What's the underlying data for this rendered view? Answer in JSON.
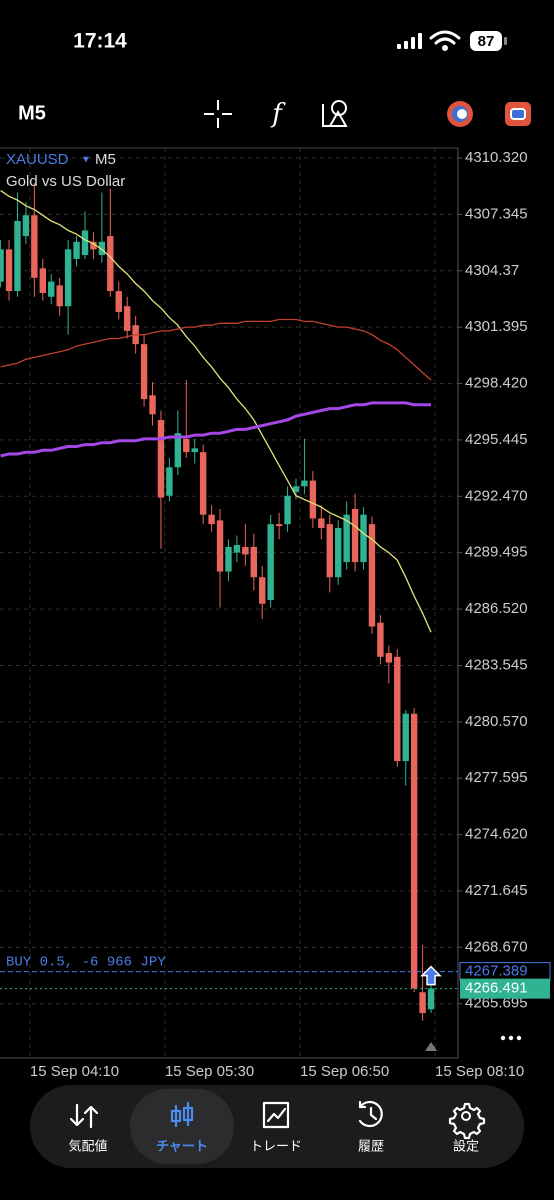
{
  "status_bar": {
    "time": "17:14",
    "battery": "87"
  },
  "toolbar": {
    "timeframe": "M5"
  },
  "chart_data": {
    "type": "candlestick",
    "symbol": "XAUUSD",
    "timeframe": "M5",
    "subtitle": "Gold vs US Dollar",
    "categories": [
      null,
      null,
      null,
      "15 Sep 04:10",
      null,
      null,
      null,
      null,
      null,
      null,
      null,
      null,
      null,
      null,
      null,
      null,
      null,
      null,
      null,
      "15 Sep 05:30",
      null,
      null,
      null,
      null,
      null,
      null,
      null,
      null,
      null,
      null,
      null,
      null,
      null,
      null,
      null,
      "15 Sep 06:50",
      null,
      null,
      null,
      null,
      null,
      null,
      null,
      null,
      null,
      null,
      null,
      null,
      null,
      null,
      null,
      "15 Sep 08:10"
    ],
    "open": [
      4303.8,
      4305.5,
      4303.3,
      4306.2,
      4307.3,
      4304.5,
      4303.0,
      4303.6,
      4302.5,
      4305.0,
      4305.2,
      4305.9,
      4305.2,
      4306.2,
      4303.3,
      4302.5,
      4301.5,
      4300.5,
      4297.8,
      4296.5,
      4292.5,
      4294.0,
      4295.5,
      4294.8,
      4294.8,
      4291.5,
      4291.2,
      4288.5,
      4289.5,
      4289.8,
      4289.8,
      4288.2,
      4287.0,
      4291.0,
      4291.0,
      4292.7,
      4293.0,
      4293.3,
      4291.3,
      4291.0,
      4288.2,
      4289.0,
      4291.8,
      4289.0,
      4291.0,
      4285.8,
      4284.2,
      4284.0,
      4278.5,
      4281.0,
      4266.3,
      4265.4
    ],
    "high": [
      4306.0,
      4306.0,
      4308.5,
      4308.0,
      4309.0,
      4305.0,
      4304.2,
      4304.0,
      4306.0,
      4306.2,
      4307.5,
      4306.4,
      4308.5,
      4308.7,
      4303.8,
      4303.0,
      4302.0,
      4301.0,
      4298.5,
      4297.0,
      4294.5,
      4297.0,
      4298.6,
      4295.5,
      4295.2,
      4292.0,
      4291.8,
      4290.2,
      4290.4,
      4291.0,
      4290.5,
      4288.8,
      4291.5,
      4291.6,
      4293.0,
      4293.4,
      4295.5,
      4293.8,
      4292.0,
      4291.5,
      4291.2,
      4292.2,
      4292.6,
      4291.9,
      4291.4,
      4286.2,
      4284.6,
      4284.4,
      4281.2,
      4281.3,
      4268.8,
      4267.0
    ],
    "low": [
      4303.5,
      4302.8,
      4303.0,
      4305.8,
      4303.0,
      4302.8,
      4302.6,
      4302.0,
      4301.0,
      4304.6,
      4305.0,
      4305.0,
      4304.8,
      4303.0,
      4301.8,
      4300.8,
      4300.0,
      4297.2,
      4296.2,
      4289.7,
      4292.2,
      4293.6,
      4294.5,
      4294.2,
      4291.0,
      4290.6,
      4286.6,
      4288.0,
      4289.0,
      4288.8,
      4287.5,
      4286.0,
      4286.6,
      4290.2,
      4290.6,
      4292.3,
      4292.6,
      4290.8,
      4290.2,
      4287.4,
      4287.8,
      4288.6,
      4288.5,
      4288.6,
      4285.2,
      4283.6,
      4282.6,
      4278.2,
      4277.2,
      4266.3,
      4264.8,
      4265.2
    ],
    "close": [
      4305.5,
      4303.3,
      4307.0,
      4307.3,
      4304.0,
      4303.2,
      4303.8,
      4302.5,
      4305.5,
      4305.9,
      4306.5,
      4305.5,
      4305.9,
      4303.3,
      4302.2,
      4301.2,
      4300.5,
      4297.6,
      4296.8,
      4292.4,
      4294.0,
      4295.8,
      4294.8,
      4295.0,
      4291.5,
      4291.0,
      4288.5,
      4289.8,
      4289.9,
      4289.4,
      4288.2,
      4286.8,
      4291.0,
      4290.9,
      4292.5,
      4293.0,
      4293.3,
      4291.3,
      4290.8,
      4288.2,
      4290.8,
      4291.5,
      4289.0,
      4291.5,
      4285.6,
      4284.0,
      4283.7,
      4278.5,
      4281.0,
      4266.5,
      4265.2,
      4266.5
    ],
    "up_color": "#2fb393",
    "down_color": "#e8665c",
    "series": [
      {
        "color": "#e6e07a",
        "values": [
          4308.6,
          4308.3,
          4308.1,
          4307.8,
          4307.6,
          4307.3,
          4307.0,
          4306.8,
          4306.5,
          4306.3,
          4306.0,
          4305.8,
          4305.5,
          4305.1,
          4304.6,
          4304.2,
          4303.7,
          4303.3,
          4302.8,
          4302.4,
          4301.9,
          4301.5,
          4300.9,
          4300.4,
          4299.8,
          4299.3,
          4298.7,
          4298.2,
          4297.6,
          4297.1,
          4296.5,
          4295.7,
          4294.9,
          4294.1,
          4293.3,
          4292.5,
          4292.3,
          4292.1,
          4291.9,
          4291.6,
          4291.4,
          4291.2,
          4290.9,
          4290.5,
          4290.2,
          4289.8,
          4289.5,
          4289.1,
          4288.2,
          4287.2,
          4286.3,
          4285.3
        ]
      },
      {
        "color": "#c2412f",
        "values": [
          4299.3,
          4299.4,
          4299.5,
          4299.7,
          4299.8,
          4299.9,
          4300.0,
          4300.1,
          4300.2,
          4300.4,
          4300.5,
          4300.6,
          4300.7,
          4300.8,
          4300.8,
          4300.9,
          4301.0,
          4301.0,
          4301.1,
          4301.2,
          4301.2,
          4301.3,
          4301.4,
          4301.4,
          4301.5,
          4301.5,
          4301.6,
          4301.6,
          4301.6,
          4301.7,
          4301.7,
          4301.7,
          4301.7,
          4301.8,
          4301.8,
          4301.8,
          4301.7,
          4301.7,
          4301.6,
          4301.5,
          4301.4,
          4301.4,
          4301.3,
          4301.2,
          4301.0,
          4300.7,
          4300.5,
          4300.2,
          4299.8,
          4299.4,
          4299.0,
          4298.6
        ]
      },
      {
        "color": "#a347e6",
        "values": [
          4294.6,
          4294.7,
          4294.7,
          4294.8,
          4294.8,
          4294.9,
          4294.9,
          4295.0,
          4295.1,
          4295.1,
          4295.2,
          4295.2,
          4295.3,
          4295.3,
          4295.4,
          4295.4,
          4295.4,
          4295.5,
          4295.5,
          4295.5,
          4295.6,
          4295.6,
          4295.6,
          4295.7,
          4295.7,
          4295.8,
          4295.8,
          4295.9,
          4296.0,
          4296.0,
          4296.1,
          4296.2,
          4296.3,
          4296.4,
          4296.5,
          4296.7,
          4296.8,
          4296.9,
          4297.0,
          4297.1,
          4297.1,
          4297.2,
          4297.3,
          4297.3,
          4297.4,
          4297.4,
          4297.4,
          4297.4,
          4297.4,
          4297.3,
          4297.3,
          4297.3
        ]
      }
    ],
    "ylim": [
      4262.83,
      4310.85
    ],
    "yticks": [
      {
        "value": 4310.32,
        "label": "4310.320"
      },
      4307.345,
      4304.37,
      {
        "value": 4301.395,
        "label": "4301.395"
      },
      {
        "value": 4298.42,
        "label": "4298.420"
      },
      {
        "value": 4295.445,
        "label": "4295.445"
      },
      {
        "value": 4292.47,
        "label": "4292.470"
      },
      {
        "value": 4289.495,
        "label": "4289.495"
      },
      {
        "value": 4286.52,
        "label": "4286.520"
      },
      {
        "value": 4283.545,
        "label": "4283.545"
      },
      {
        "value": 4280.57,
        "label": "4280.570"
      },
      {
        "value": 4277.595,
        "label": "4277.595"
      },
      {
        "value": 4274.62,
        "label": "4274.620"
      },
      {
        "value": 4271.645,
        "label": "4271.645"
      },
      {
        "value": 4268.67,
        "label": "4268.670"
      },
      {
        "value": 4265.695,
        "label": "4265.695"
      }
    ],
    "grid": true,
    "position": {
      "label": "BUY 0.5, -6 966 JPY",
      "price": {
        "value": 4267.389,
        "label": "4267.389"
      },
      "color": "#4a7be8"
    },
    "bid": {
      "value": 4266.491,
      "label": "4266.491",
      "color": "#2fb393"
    }
  },
  "nav": {
    "items": [
      "気配値",
      "チャート",
      "トレード",
      "履歴",
      "設定"
    ],
    "selected": 1
  }
}
